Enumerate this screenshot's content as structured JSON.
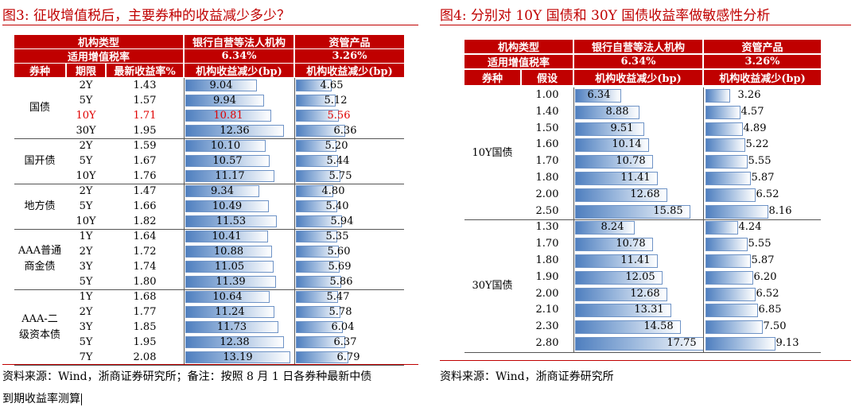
{
  "left": {
    "title": "图3:  征收增值税后，主要券种的收益减少多少？",
    "header1": {
      "type_label": "机构类型",
      "bank_label": "银行自营等法人机构",
      "am_label": "资管产品"
    },
    "header2": {
      "vat_label": "适用增值税率",
      "bank_rate": "6.34%",
      "am_rate": "3.26%"
    },
    "header3": {
      "bond_type": "券种",
      "tenor": "期限",
      "yield": "最新收益率%",
      "bank_drop": "机构收益减少(bp)",
      "am_drop": "机构收益减少(bp)"
    },
    "bar_max": 13.19,
    "am_bar_max": 6.79,
    "groups": [
      {
        "name": "国债",
        "rows": [
          {
            "tenor": "2Y",
            "yield": "1.43",
            "bank": 9.04,
            "am": 4.65
          },
          {
            "tenor": "5Y",
            "yield": "1.57",
            "bank": 9.94,
            "am": 5.12
          },
          {
            "tenor": "10Y",
            "yield": "1.71",
            "bank": 10.81,
            "am": 5.56,
            "highlight": true
          },
          {
            "tenor": "30Y",
            "yield": "1.95",
            "bank": 12.36,
            "am": 6.36
          }
        ]
      },
      {
        "name": "国开债",
        "rows": [
          {
            "tenor": "2Y",
            "yield": "1.59",
            "bank": 10.1,
            "am": 5.2
          },
          {
            "tenor": "5Y",
            "yield": "1.67",
            "bank": 10.57,
            "am": 5.44
          },
          {
            "tenor": "10Y",
            "yield": "1.76",
            "bank": 11.17,
            "am": 5.75
          }
        ]
      },
      {
        "name": "地方债",
        "rows": [
          {
            "tenor": "2Y",
            "yield": "1.47",
            "bank": 9.34,
            "am": 4.8
          },
          {
            "tenor": "5Y",
            "yield": "1.66",
            "bank": 10.49,
            "am": 5.4
          },
          {
            "tenor": "10Y",
            "yield": "1.82",
            "bank": 11.53,
            "am": 5.94
          }
        ]
      },
      {
        "name": "AAA普通\n商金债",
        "rows": [
          {
            "tenor": "1Y",
            "yield": "1.64",
            "bank": 10.41,
            "am": 5.35
          },
          {
            "tenor": "2Y",
            "yield": "1.72",
            "bank": 10.88,
            "am": 5.6
          },
          {
            "tenor": "3Y",
            "yield": "1.74",
            "bank": 11.05,
            "am": 5.69
          },
          {
            "tenor": "5Y",
            "yield": "1.80",
            "bank": 11.39,
            "am": 5.86
          }
        ]
      },
      {
        "name": "AAA-二\n级资本债",
        "rows": [
          {
            "tenor": "1Y",
            "yield": "1.68",
            "bank": 10.64,
            "am": 5.47
          },
          {
            "tenor": "2Y",
            "yield": "1.77",
            "bank": 11.24,
            "am": 5.78
          },
          {
            "tenor": "3Y",
            "yield": "1.85",
            "bank": 11.73,
            "am": 6.04
          },
          {
            "tenor": "5Y",
            "yield": "1.95",
            "bank": 12.38,
            "am": 6.37
          },
          {
            "tenor": "7Y",
            "yield": "2.08",
            "bank": 13.19,
            "am": 6.79
          }
        ]
      }
    ],
    "source_line1": "资料来源：Wind，浙商证券研究所；备注：按照 8 月 1 日各券种最新中债",
    "source_line2": "到期收益率测算"
  },
  "right": {
    "title": "图4:  分别对 10Y 国债和 30Y 国债收益率做敏感性分析",
    "header1": {
      "type_label": "机构类型",
      "bank_label": "银行自营等法人机构",
      "am_label": "资管产品"
    },
    "header2": {
      "vat_label": "适用增值税率",
      "bank_rate": "6.34%",
      "am_rate": "3.26%"
    },
    "header3": {
      "bond_type": "券种",
      "assume": "假设",
      "bank_drop": "机构收益减少(bp)",
      "am_drop": "机构收益减少(bp)"
    },
    "bar_max": 17.75,
    "am_bar_max": 9.13,
    "groups": [
      {
        "name": "10Y国债",
        "rows": [
          {
            "assume": "1.00",
            "bank": 6.34,
            "am": 3.26
          },
          {
            "assume": "1.40",
            "bank": 8.88,
            "am": 4.57
          },
          {
            "assume": "1.50",
            "bank": 9.51,
            "am": 4.89
          },
          {
            "assume": "1.60",
            "bank": 10.14,
            "am": 5.22
          },
          {
            "assume": "1.70",
            "bank": 10.78,
            "am": 5.55
          },
          {
            "assume": "1.80",
            "bank": 11.41,
            "am": 5.87
          },
          {
            "assume": "2.00",
            "bank": 12.68,
            "am": 6.52
          },
          {
            "assume": "2.50",
            "bank": 15.85,
            "am": 8.16
          }
        ]
      },
      {
        "name": "30Y国债",
        "rows": [
          {
            "assume": "1.30",
            "bank": 8.24,
            "am": 4.24
          },
          {
            "assume": "1.70",
            "bank": 10.78,
            "am": 5.55
          },
          {
            "assume": "1.80",
            "bank": 11.41,
            "am": 5.87
          },
          {
            "assume": "1.90",
            "bank": 12.05,
            "am": 6.2
          },
          {
            "assume": "2.00",
            "bank": 12.68,
            "am": 6.52
          },
          {
            "assume": "2.10",
            "bank": 13.31,
            "am": 6.85
          },
          {
            "assume": "2.30",
            "bank": 14.58,
            "am": 7.5
          },
          {
            "assume": "2.80",
            "bank": 17.75,
            "am": 9.13
          }
        ]
      }
    ],
    "source": "资料来源：Wind，浙商证券研究所"
  }
}
